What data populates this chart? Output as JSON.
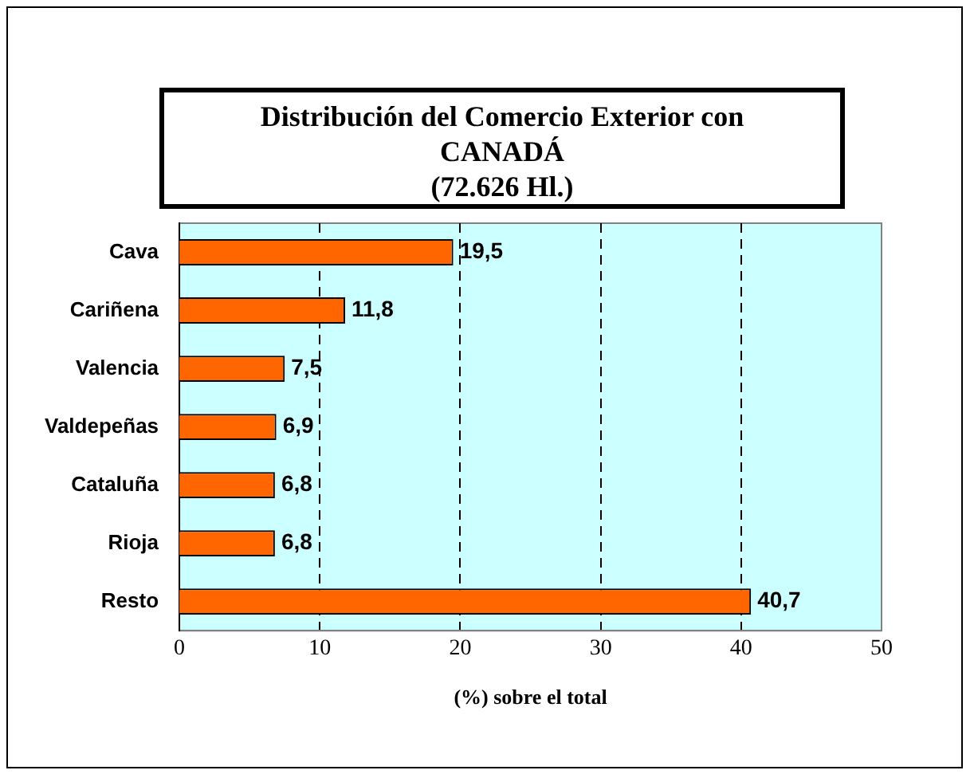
{
  "chart_data": {
    "type": "bar",
    "orientation": "horizontal",
    "title": "Distribución del Comercio Exterior con\nCANADÁ\n(72.626 Hl.)",
    "xlabel": "(%) sobre el total",
    "categories": [
      "Cava",
      "Cariñena",
      "Valencia",
      "Valdepeñas",
      "Cataluña",
      "Rioja",
      "Resto"
    ],
    "values": [
      19.5,
      11.8,
      7.5,
      6.9,
      6.8,
      6.8,
      40.7
    ],
    "value_labels": [
      "19,5",
      "11,8",
      "7,5",
      "6,9",
      "6,8",
      "6,8",
      "40,7"
    ],
    "color": "#ff6600",
    "xlim": [
      0,
      50
    ],
    "xticks": [
      0,
      10,
      20,
      30,
      40,
      50
    ],
    "grid": "x",
    "legend": false
  }
}
